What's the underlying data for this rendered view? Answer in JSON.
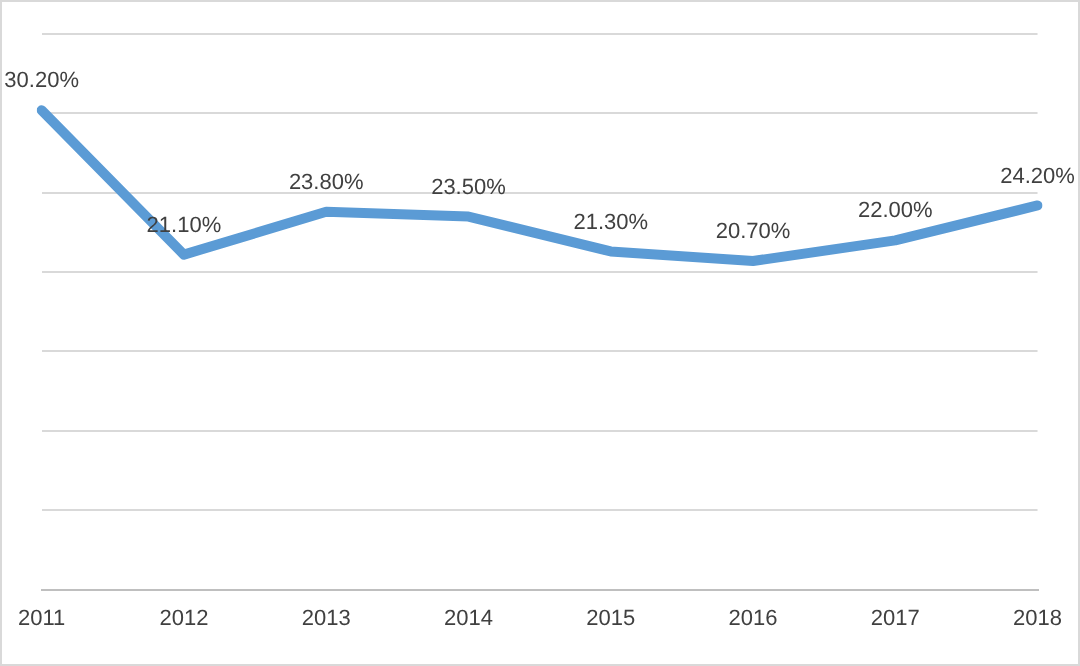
{
  "chart_data": {
    "type": "line",
    "categories": [
      "2011",
      "2012",
      "2013",
      "2014",
      "2015",
      "2016",
      "2017",
      "2018"
    ],
    "series": [
      {
        "color": "#5b9bd5",
        "values": [
          30.2,
          21.1,
          23.8,
          23.5,
          21.3,
          20.7,
          22.0,
          24.2
        ],
        "value_labels": [
          "30.20%",
          "21.10%",
          "23.80%",
          "23.50%",
          "21.30%",
          "20.70%",
          "22.00%",
          "24.20%"
        ]
      }
    ],
    "ylim": [
      0,
      35
    ],
    "yticks": [
      0,
      5,
      10,
      15,
      20,
      25,
      30,
      35
    ],
    "tick_labels": "x",
    "grid": "y",
    "legend": false,
    "marker": "none",
    "line_style": "solid"
  }
}
